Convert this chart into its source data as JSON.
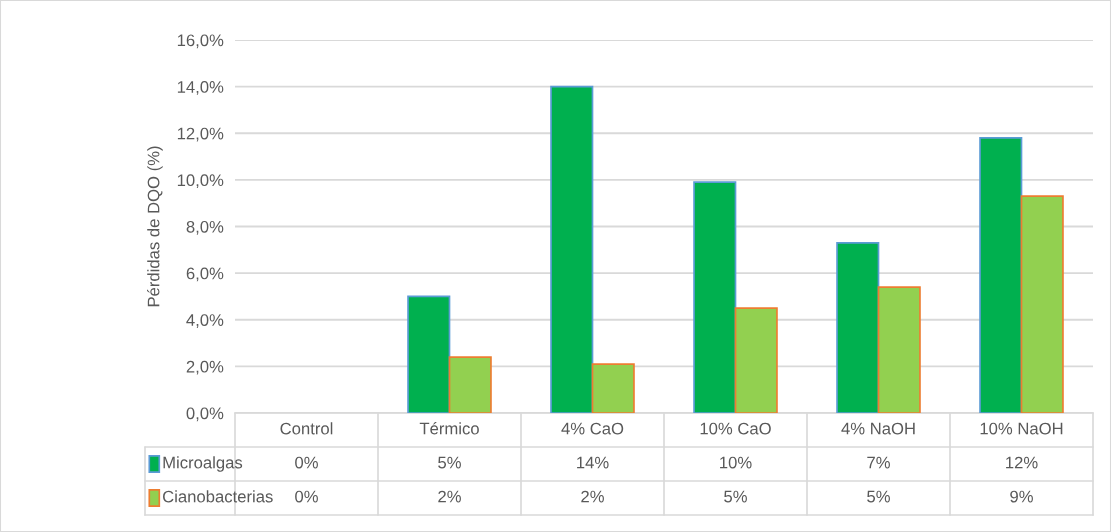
{
  "chart_data": {
    "type": "bar",
    "ylabel": "Pérdidas de DQO (%)",
    "categories": [
      "Control",
      "Térmico",
      "4% CaO",
      "10% CaO",
      "4% NaOH",
      "10% NaOH"
    ],
    "series": [
      {
        "name": "Microalgas",
        "color": "#00b04f",
        "values": [
          0,
          5.0,
          14.0,
          9.9,
          7.3,
          11.8
        ],
        "value_labels": [
          "0%",
          "5%",
          "14%",
          "10%",
          "7%",
          "12%"
        ]
      },
      {
        "name": "Cianobacterias",
        "color": "#92d050",
        "values": [
          0,
          2.4,
          2.1,
          4.5,
          5.4,
          9.3
        ],
        "value_labels": [
          "0%",
          "2%",
          "2%",
          "5%",
          "5%",
          "9%"
        ]
      }
    ],
    "ylim": [
      0,
      16
    ],
    "yticks": [
      {
        "value": 0,
        "label": "0,0%"
      },
      {
        "value": 2,
        "label": "2,0%"
      },
      {
        "value": 4,
        "label": "4,0%"
      },
      {
        "value": 6,
        "label": "6,0%"
      },
      {
        "value": 8,
        "label": "8,0%"
      },
      {
        "value": 10,
        "label": "10,0%"
      },
      {
        "value": 12,
        "label": "12,0%"
      },
      {
        "value": 14,
        "label": "14,0%"
      },
      {
        "value": 16,
        "label": "16,0%"
      }
    ],
    "grid": "y",
    "legend": "bottom"
  }
}
